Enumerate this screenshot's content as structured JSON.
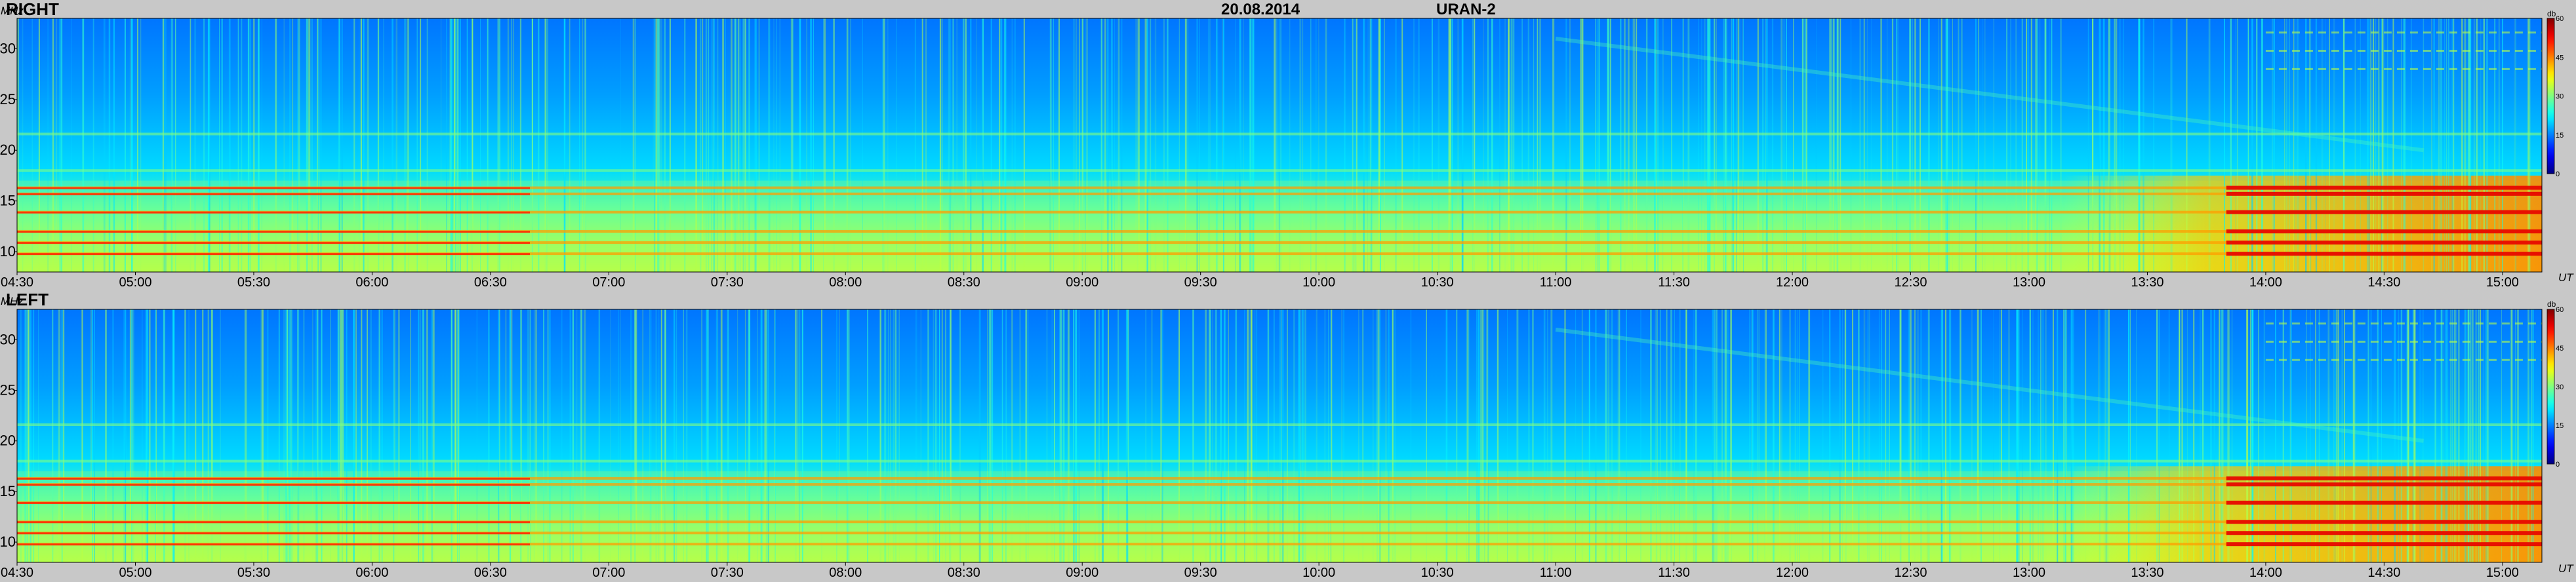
{
  "header": {
    "date": "20.08.2014",
    "instrument": "URAN-2"
  },
  "axes": {
    "y_unit": "MHz",
    "x_unit": "UT",
    "colorbar_unit": "db"
  },
  "chart_data": [
    {
      "type": "heatmap",
      "panel_label": "RIGHT",
      "x": {
        "label": "UT",
        "range": [
          "04:30",
          "15:10"
        ],
        "ticks": [
          "04:30",
          "05:00",
          "05:30",
          "06:00",
          "06:30",
          "07:00",
          "07:30",
          "08:00",
          "08:30",
          "09:00",
          "09:30",
          "10:00",
          "10:30",
          "11:00",
          "11:30",
          "12:00",
          "12:30",
          "13:00",
          "13:30",
          "14:00",
          "14:30",
          "15:00"
        ]
      },
      "y": {
        "label": "MHz",
        "range": [
          8,
          33
        ],
        "ticks": [
          10,
          15,
          20,
          25,
          30
        ]
      },
      "colorbar": {
        "label": "db",
        "range": [
          0,
          60
        ],
        "ticks": [
          0,
          15,
          30,
          45,
          60
        ]
      },
      "horizontal_bands_mhz": [
        9.8,
        10.9,
        12.0,
        13.9,
        15.7,
        16.3,
        18.0,
        21.6
      ],
      "late_burst_onset": "13:50"
    },
    {
      "type": "heatmap",
      "panel_label": "LEFT",
      "x": {
        "label": "UT",
        "range": [
          "04:30",
          "15:10"
        ],
        "ticks": [
          "04:30",
          "05:00",
          "05:30",
          "06:00",
          "06:30",
          "07:00",
          "07:30",
          "08:00",
          "08:30",
          "09:00",
          "09:30",
          "10:00",
          "10:30",
          "11:00",
          "11:30",
          "12:00",
          "12:30",
          "13:00",
          "13:30",
          "14:00",
          "14:30",
          "15:00"
        ]
      },
      "y": {
        "label": "MHz",
        "range": [
          8,
          33
        ],
        "ticks": [
          10,
          15,
          20,
          25,
          30
        ]
      },
      "colorbar": {
        "label": "db",
        "range": [
          0,
          60
        ],
        "ticks": [
          0,
          15,
          30,
          45,
          60
        ]
      },
      "horizontal_bands_mhz": [
        9.8,
        10.9,
        12.0,
        13.9,
        15.7,
        16.3,
        18.0,
        21.6
      ],
      "late_burst_onset": "13:50"
    }
  ]
}
